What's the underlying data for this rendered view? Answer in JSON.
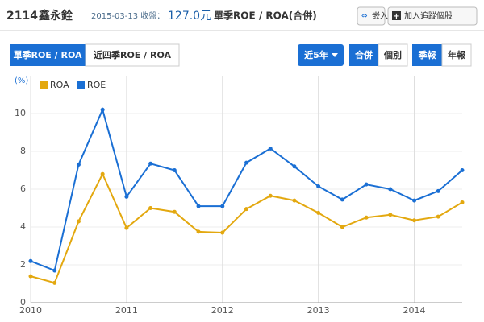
{
  "header": {
    "code": "2114",
    "name": "鑫永銓",
    "date": "2015-03-13 收盤：",
    "price": "127.0元",
    "subject": "單季ROE / ROA(合併)",
    "embed": "嵌入",
    "follow": "加入追蹤個股"
  },
  "tabs": {
    "quarterly": "單季ROE / ROA",
    "trailing": "近四季ROE / ROA",
    "range": "近5年",
    "consolidated": "合併",
    "individual": "個別",
    "quarter_report": "季報",
    "annual_report": "年報"
  },
  "chart_data": {
    "type": "line",
    "y_unit": "(%)",
    "x": [
      2010,
      2010.25,
      2010.5,
      2010.75,
      2011,
      2011.25,
      2011.5,
      2011.75,
      2012,
      2012.25,
      2012.5,
      2012.75,
      2013,
      2013.25,
      2013.5,
      2013.75,
      2014,
      2014.25,
      2014.5
    ],
    "series": [
      {
        "name": "ROA",
        "color": "#e3a80f",
        "values": [
          1.4,
          1.05,
          4.3,
          6.8,
          3.95,
          5.0,
          4.8,
          3.75,
          3.7,
          4.95,
          5.65,
          5.4,
          4.75,
          4.0,
          4.5,
          4.65,
          4.35,
          4.55,
          5.3
        ]
      },
      {
        "name": "ROE",
        "color": "#1a6fd4",
        "values": [
          2.2,
          1.7,
          7.3,
          10.2,
          5.6,
          7.35,
          7.0,
          5.1,
          5.1,
          7.4,
          8.15,
          7.2,
          6.15,
          5.45,
          6.25,
          6.0,
          5.4,
          5.9,
          7.0
        ]
      }
    ],
    "xlim": [
      2010,
      2014.5
    ],
    "xticks": [
      2010,
      2011,
      2012,
      2013,
      2014
    ],
    "ylim": [
      0,
      12
    ],
    "yticks": [
      0,
      2,
      4,
      6,
      8,
      10
    ],
    "grid": true
  }
}
